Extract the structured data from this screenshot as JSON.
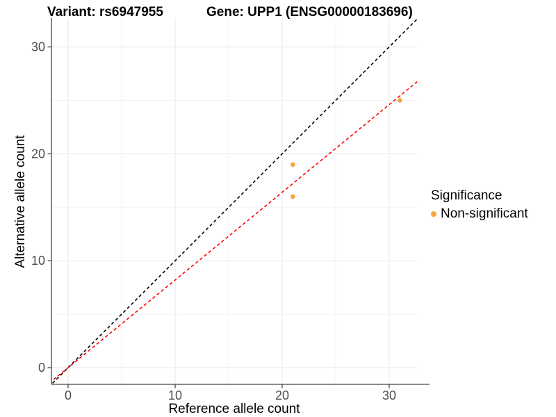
{
  "header": {
    "variant_title": "Variant: rs6947955",
    "gene_title": "Gene: UPP1 (ENSG00000183696)"
  },
  "chart_data": {
    "type": "scatter",
    "title_left": "Variant: rs6947955",
    "title_right": "Gene: UPP1 (ENSG00000183696)",
    "xlabel": "Reference allele count",
    "ylabel": "Alternative allele count",
    "xlim": [
      -1.56,
      32.6
    ],
    "ylim": [
      -1.56,
      32.7
    ],
    "x_major_ticks": [
      0,
      10,
      20,
      30
    ],
    "y_major_ticks": [
      0,
      10,
      20,
      30
    ],
    "x_minor_gridlines": [
      5,
      15,
      25
    ],
    "y_minor_gridlines": [
      5,
      15,
      25
    ],
    "grid": "major+minor",
    "points": [
      {
        "x": 21,
        "y": 19,
        "series": "Non-significant"
      },
      {
        "x": 21,
        "y": 16,
        "series": "Non-significant"
      },
      {
        "x": 31,
        "y": 25,
        "series": "Non-significant"
      }
    ],
    "reference_lines": [
      {
        "name": "identity",
        "slope": 1,
        "intercept": 0,
        "color": "#000000",
        "style": "dashed"
      },
      {
        "name": "fit",
        "slope": 0.82,
        "intercept": 0,
        "color": "#ff0000",
        "style": "dashed"
      }
    ],
    "point_color": "#F9A442",
    "point_radius": 3.3,
    "legend": {
      "title": "Significance",
      "position": "right",
      "items": [
        {
          "label": "Non-significant",
          "color": "#F9A442"
        }
      ]
    },
    "colors": {
      "grid_major": "#EBEBEB",
      "grid_minor": "#F4F4F4",
      "axis_line": "#444444",
      "tick_text": "#4D4D4D"
    }
  }
}
